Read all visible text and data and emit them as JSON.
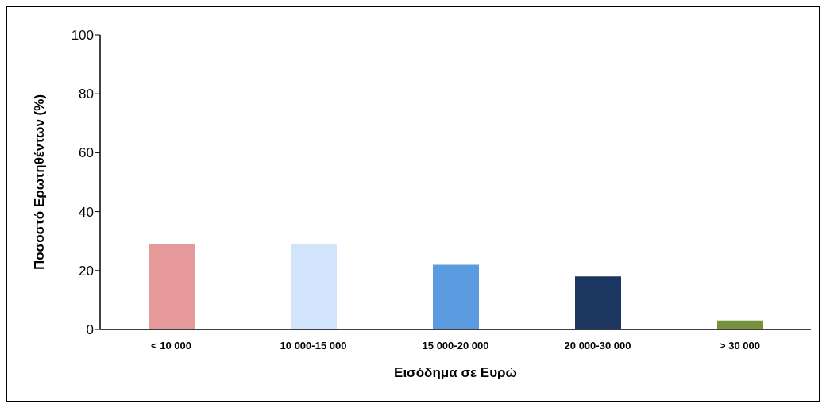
{
  "chart_data": {
    "type": "bar",
    "xlabel": "Εισόδημα σε Ευρώ",
    "ylabel": "Ποσοστό Ερωτηθέντων (%)",
    "categories": [
      "< 10 000",
      "10 000-15 000",
      "15 000-20 000",
      "20 000-30 000",
      "> 30 000"
    ],
    "values": [
      29,
      29,
      22,
      18,
      3
    ],
    "colors": [
      "#e6999a",
      "#d2e4fb",
      "#5b9be0",
      "#1b365f",
      "#76923c"
    ],
    "ylim": [
      0,
      100
    ],
    "yticks": [
      0,
      20,
      40,
      60,
      80,
      100
    ],
    "grid": false
  }
}
